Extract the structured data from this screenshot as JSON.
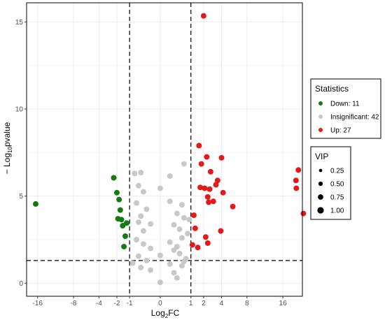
{
  "chart_data": {
    "type": "scatter",
    "xlabel": {
      "base": "Log",
      "sub": "2",
      "rest": "FC"
    },
    "ylabel": {
      "prefix": "− Log",
      "sub": "10",
      "rest": "pvalue"
    },
    "xlim": [
      -19,
      21.5
    ],
    "ylim": [
      -0.75,
      16.1
    ],
    "x_ticks": [
      -16,
      -8,
      -4,
      -2,
      -1,
      0,
      1,
      2,
      4,
      8,
      16
    ],
    "y_ticks": [
      0,
      5,
      10,
      15
    ],
    "thresholds": {
      "x": [
        -1,
        1
      ],
      "y": 1.3
    },
    "grid": true,
    "legend_position": "right",
    "legend_statistics": {
      "title": "Statistics",
      "items": [
        {
          "label": "Down: 11",
          "color": "#117d11"
        },
        {
          "label": "Insignificant: 42",
          "color": "#c8c8c8"
        },
        {
          "label": "Up: 27",
          "color": "#e31a1c"
        }
      ]
    },
    "legend_vip": {
      "title": "VIP",
      "items": [
        {
          "label": "0.25",
          "size": 0.25
        },
        {
          "label": "0.50",
          "size": 0.5
        },
        {
          "label": "0.75",
          "size": 0.75
        },
        {
          "label": "1.00",
          "size": 1.0
        }
      ]
    },
    "series": [
      {
        "name": "Down: 11",
        "color": "#117d11",
        "points": [
          [
            -16.5,
            4.55
          ],
          [
            -2.3,
            6.05
          ],
          [
            -2.0,
            5.2
          ],
          [
            -1.8,
            4.8
          ],
          [
            -1.7,
            4.2
          ],
          [
            -1.9,
            3.7
          ],
          [
            -1.6,
            3.65
          ],
          [
            -1.5,
            3.3
          ],
          [
            -1.2,
            3.45
          ],
          [
            -1.3,
            2.7
          ],
          [
            -1.4,
            2.1
          ]
        ]
      },
      {
        "name": "Insignificant: 42",
        "color": "#c8c8c8",
        "points": [
          [
            -0.3,
            2.25
          ],
          [
            -0.1,
            2.0
          ],
          [
            0.0,
            1.6
          ],
          [
            0.2,
            1.9
          ],
          [
            0.4,
            1.7
          ],
          [
            0.3,
            2.1
          ],
          [
            -0.2,
            1.3
          ],
          [
            0.1,
            1.1
          ],
          [
            0.5,
            1.0
          ],
          [
            -0.4,
            0.9
          ],
          [
            0.6,
            1.25
          ],
          [
            0.2,
            0.6
          ],
          [
            -0.1,
            0.75
          ],
          [
            0.3,
            0.3
          ],
          [
            0.0,
            0.05
          ],
          [
            -0.5,
            1.55
          ],
          [
            0.7,
            1.4
          ],
          [
            -0.6,
            2.5
          ],
          [
            0.5,
            2.6
          ],
          [
            0.1,
            2.35
          ],
          [
            -0.3,
            3.0
          ],
          [
            0.4,
            3.1
          ],
          [
            -0.5,
            3.5
          ],
          [
            0.2,
            3.35
          ],
          [
            0.6,
            3.75
          ],
          [
            -0.4,
            3.85
          ],
          [
            0.3,
            4.0
          ],
          [
            -0.2,
            4.25
          ],
          [
            0.5,
            4.5
          ],
          [
            -0.6,
            4.6
          ],
          [
            0.1,
            4.7
          ],
          [
            -0.3,
            5.25
          ],
          [
            0.0,
            5.45
          ],
          [
            -0.5,
            5.6
          ],
          [
            -0.7,
            6.3
          ],
          [
            -0.4,
            6.35
          ],
          [
            0.1,
            6.15
          ],
          [
            0.6,
            6.85
          ],
          [
            -0.1,
            3.4
          ],
          [
            0.8,
            2.85
          ],
          [
            -0.8,
            1.15
          ],
          [
            0.9,
            3.65
          ]
        ]
      },
      {
        "name": "Up: 27",
        "color": "#e31a1c",
        "points": [
          [
            2.0,
            15.35
          ],
          [
            1.6,
            7.9
          ],
          [
            1.8,
            6.85
          ],
          [
            2.3,
            7.25
          ],
          [
            4.0,
            7.2
          ],
          [
            2.7,
            6.4
          ],
          [
            3.5,
            5.9
          ],
          [
            3.3,
            5.65
          ],
          [
            1.7,
            5.5
          ],
          [
            2.1,
            5.45
          ],
          [
            2.6,
            5.4
          ],
          [
            4.2,
            5.2
          ],
          [
            2.4,
            4.95
          ],
          [
            3.0,
            4.7
          ],
          [
            2.5,
            4.65
          ],
          [
            5.6,
            4.4
          ],
          [
            1.2,
            3.9
          ],
          [
            1.3,
            3.15
          ],
          [
            3.9,
            3.0
          ],
          [
            2.2,
            2.65
          ],
          [
            2.4,
            2.3
          ],
          [
            1.1,
            2.2
          ],
          [
            1.5,
            2.05
          ],
          [
            20.3,
            6.5
          ],
          [
            19.6,
            5.9
          ],
          [
            19.7,
            5.45
          ],
          [
            21.8,
            4.0
          ]
        ]
      }
    ]
  }
}
